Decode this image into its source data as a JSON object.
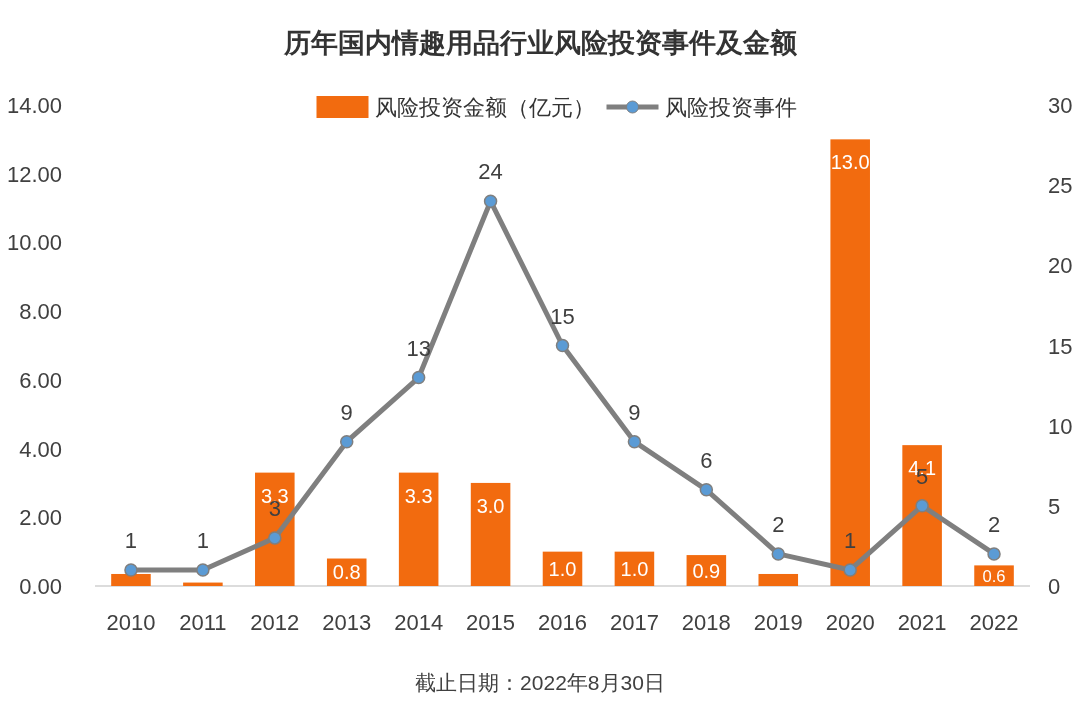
{
  "chart_data": {
    "type": "bar",
    "title": "历年国内情趣用品行业风险投资事件及金额",
    "categories": [
      "2010",
      "2011",
      "2012",
      "2013",
      "2014",
      "2015",
      "2016",
      "2017",
      "2018",
      "2019",
      "2020",
      "2021",
      "2022"
    ],
    "series": [
      {
        "name": "风险投资金额（亿元）",
        "color": "#f26b0f",
        "values": [
          0.35,
          0.1,
          3.3,
          0.8,
          3.3,
          3.0,
          1.0,
          1.0,
          0.9,
          0.35,
          13.0,
          4.1,
          0.6
        ],
        "value_labels": [
          null,
          null,
          "3.3",
          "0.8",
          "3.3",
          "3.0",
          "1.0",
          "1.0",
          "0.9",
          null,
          "13.0",
          "4.1",
          "0.6"
        ]
      },
      {
        "name": "风险投资事件",
        "type": "line",
        "axis": "y2",
        "color": "#7f7f7f",
        "marker": "circle",
        "data_labels": true,
        "values": [
          1,
          1,
          3,
          9,
          13,
          24,
          15,
          9,
          6,
          2,
          1,
          5,
          2
        ]
      }
    ],
    "ylim": [
      0,
      14
    ],
    "yticks": [
      {
        "value": 0,
        "label": "0.00"
      },
      {
        "value": 2,
        "label": "2.00"
      },
      {
        "value": 4,
        "label": "4.00"
      },
      {
        "value": 6,
        "label": "6.00"
      },
      {
        "value": 8,
        "label": "8.00"
      },
      {
        "value": 10,
        "label": "10.00"
      },
      {
        "value": 12,
        "label": "12.00"
      },
      {
        "value": 14,
        "label": "14.00"
      }
    ],
    "y2lim": [
      0,
      30
    ],
    "y2ticks": [
      0,
      5,
      10,
      15,
      20,
      25,
      30
    ],
    "legend": "top",
    "annotations": [
      "截止日期：2022年8月30日"
    ]
  }
}
